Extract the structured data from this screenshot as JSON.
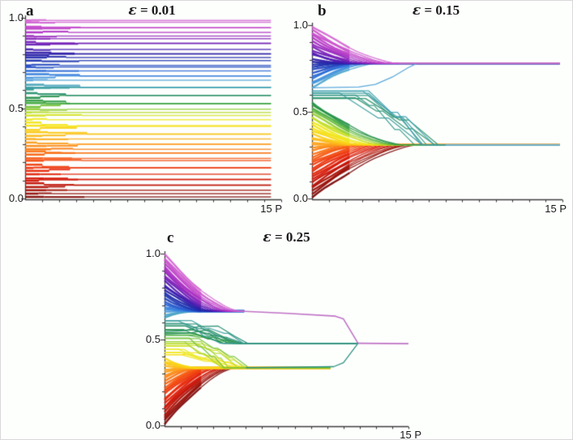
{
  "figure": {
    "background": "#fdfffd",
    "axis_color": "#3c3c3c",
    "text_color": "#1a1a1a"
  },
  "colormap_stops": [
    [
      0.0,
      "#7a0b0b"
    ],
    [
      0.05,
      "#a31108"
    ],
    [
      0.1,
      "#d01508"
    ],
    [
      0.16,
      "#ea2d0d"
    ],
    [
      0.22,
      "#f55211"
    ],
    [
      0.27,
      "#fa7c16"
    ],
    [
      0.32,
      "#fda51d"
    ],
    [
      0.36,
      "#fcc418"
    ],
    [
      0.4,
      "#f7df14"
    ],
    [
      0.44,
      "#eeea20"
    ],
    [
      0.47,
      "#c6df2b"
    ],
    [
      0.5,
      "#84c83a"
    ],
    [
      0.53,
      "#3fa83e"
    ],
    [
      0.56,
      "#218c4e"
    ],
    [
      0.59,
      "#2a9178"
    ],
    [
      0.62,
      "#3c9fae"
    ],
    [
      0.65,
      "#58a8d8"
    ],
    [
      0.68,
      "#3c88e0"
    ],
    [
      0.71,
      "#2a66d4"
    ],
    [
      0.74,
      "#2546be"
    ],
    [
      0.77,
      "#1d2fac"
    ],
    [
      0.8,
      "#2b1ea6"
    ],
    [
      0.83,
      "#4a1cb2"
    ],
    [
      0.86,
      "#6e1eb6"
    ],
    [
      0.89,
      "#9026bc"
    ],
    [
      0.92,
      "#ae30c4"
    ],
    [
      0.95,
      "#c449ca"
    ],
    [
      1.0,
      "#d76cd4"
    ]
  ],
  "chart_data": [
    {
      "type": "line",
      "panel_label": "a",
      "title": "ε = 0.01",
      "title_symbol": "ε",
      "title_value": " = 0.01",
      "epsilon": 0.01,
      "x_range": [
        0,
        15
      ],
      "y_range": [
        0,
        1
      ],
      "x_tick_count": 15,
      "x_axis_label": "15 P",
      "y_tick_labels": [
        "1.0",
        "0.5",
        "0.0"
      ],
      "n_trajectories": 56,
      "initial_opinions": "≈56 opinions spread uniformly over [0,1], rainbow-colored by initial value",
      "behavior": "no consensus: opinions keep their initial values; only tiny merges of nearest neighbours during the first ~3 periods",
      "final_cluster_values": "≈45 distinct opinion values remain, spread uniformly over [0,1]",
      "render": {
        "mode": "frozen",
        "seed": 11,
        "t_end": 14.4,
        "pair_prob": 0.3,
        "triple_prob": 0.08
      }
    },
    {
      "type": "line",
      "panel_label": "b",
      "title": "ε = 0.15",
      "title_symbol": "ε",
      "title_value": " = 0.15",
      "epsilon": 0.15,
      "x_range": [
        0,
        15
      ],
      "y_range": [
        0,
        1
      ],
      "x_tick_count": 15,
      "x_axis_label": "15 P",
      "y_tick_labels": [
        "1.0",
        "0.5",
        "0.0"
      ],
      "n_trajectories": 60,
      "initial_opinions": "≈60 opinions spread uniformly over [0,1], rainbow-colored by initial value",
      "behavior": "polarization into two opinion clusters",
      "final_clusters": [
        {
          "value": 0.78,
          "reached_by_P": 5.2,
          "line_color": "#bf72c5"
        },
        {
          "value": 0.31,
          "reached_by_P": 8.0,
          "line_color": "#7fb6dc"
        }
      ],
      "render": {
        "mode": "funnel",
        "seed": 7,
        "t_end": 14.85,
        "wobble": 0.005,
        "step_dup": 2,
        "smooth_bands": [
          {
            "range": [
              0.622,
              1.001
            ],
            "target": 0.78,
            "t_base": 1.6,
            "t_span": 3.6,
            "max_dist": 0.22,
            "pow": 1.5
          },
          {
            "range": [
              -0.001,
              0.555
            ],
            "target": 0.31,
            "t_base": 1.8,
            "t_span": 4.6,
            "max_dist": 0.31,
            "pow": 1.5
          }
        ],
        "step_bands": [
          {
            "range": [
              0.555,
              0.622
            ],
            "target": 0.31,
            "t_hold": [
              1.6,
              3.4
            ],
            "t_finish": [
              5.6,
              8.2
            ]
          }
        ],
        "risers": [
          {
            "points": [
              [
                0,
                0.638
              ],
              [
                2.8,
                0.643
              ],
              [
                3.8,
                0.658
              ],
              [
                4.8,
                0.7
              ],
              [
                5.8,
                0.757
              ],
              [
                6.3,
                0.78
              ]
            ],
            "color_value": 0.655
          }
        ],
        "overlays": [
          {
            "points": [
              [
                5.2,
                0.78
              ],
              [
                14.85,
                0.78
              ]
            ],
            "color": "#bf72c5",
            "width": 1.8
          },
          {
            "points": [
              [
                8.0,
                0.31
              ],
              [
                14.85,
                0.31
              ]
            ],
            "color": "#7fb6dc",
            "width": 1.8
          }
        ]
      }
    },
    {
      "type": "line",
      "panel_label": "c",
      "title": "ε = 0.25",
      "title_symbol": "ε",
      "title_value": " = 0.25",
      "epsilon": 0.25,
      "x_range": [
        0,
        15
      ],
      "y_range": [
        0,
        1
      ],
      "x_tick_count": 15,
      "x_axis_label": "15 P",
      "y_tick_labels": [
        "1.0",
        "0.5",
        "0.0"
      ],
      "n_trajectories": 60,
      "initial_opinions": "≈60 opinions spread uniformly over [0,1], rainbow-colored by initial value",
      "behavior": "three temporary clusters (≈0.665, ≈0.478, ≈0.335) that merge into full consensus late",
      "intermediate_clusters": [
        {
          "value": 0.665,
          "from_P": 4.7,
          "merges_at_P": 11.9
        },
        {
          "value": 0.478,
          "from_P": 5.0,
          "merges_at_P": 11.9
        },
        {
          "value": 0.335,
          "from_P": 4.6,
          "merges_at_P": 11.9
        }
      ],
      "final_clusters": [
        {
          "value": 0.475,
          "reached_by_P": 11.9,
          "line_color": "#bf72c5"
        }
      ],
      "render": {
        "mode": "funnel",
        "seed": 23,
        "t_end": 15,
        "wobble": 0.005,
        "step_dup": 2,
        "smooth_bands": [
          {
            "range": [
              0.615,
              1.001
            ],
            "target": 0.665,
            "t_base": 1.5,
            "t_span": 3.2,
            "max_dist": 0.335,
            "pow": 1.5,
            "tail_end": 4.9
          },
          {
            "range": [
              -0.001,
              0.4
            ],
            "target": 0.335,
            "t_base": 1.5,
            "t_span": 2.9,
            "max_dist": 0.335,
            "pow": 1.5,
            "tail_end": 10.2
          }
        ],
        "step_bands": [
          {
            "range": [
              0.4,
              0.52
            ],
            "target": 0.335,
            "t_hold": [
              0.8,
              2.4
            ],
            "t_finish": [
              3.8,
              5.6
            ],
            "tail_end": 10.2
          },
          {
            "range": [
              0.52,
              0.615
            ],
            "target": 0.478,
            "t_hold": [
              0.8,
              2.2
            ],
            "t_finish": [
              3.6,
              5.2
            ],
            "tail_end": 11.8
          }
        ],
        "risers": [
          {
            "points": [
              [
                0,
                0.545
              ],
              [
                1.3,
                0.551
              ],
              [
                2.1,
                0.576
              ],
              [
                3.3,
                0.578
              ],
              [
                4.3,
                0.52
              ],
              [
                5.1,
                0.478
              ]
            ],
            "color_value": 0.585
          },
          {
            "points": [
              [
                0,
                0.532
              ],
              [
                1.6,
                0.538
              ],
              [
                2.7,
                0.558
              ],
              [
                3.9,
                0.502
              ],
              [
                4.7,
                0.478
              ]
            ],
            "color_value": 0.572
          }
        ],
        "overlays": [
          {
            "points": [
              [
                4.7,
                0.665
              ],
              [
                7.6,
                0.652
              ],
              [
                10.5,
                0.636
              ],
              [
                11.0,
                0.62
              ],
              [
                11.9,
                0.478
              ]
            ],
            "color": "#bf72c5",
            "width": 1.6
          },
          {
            "points": [
              [
                5.0,
                0.478
              ],
              [
                11.9,
                0.478
              ]
            ],
            "color": "#2f9080",
            "width": 1.3
          },
          {
            "points": [
              [
                5.0,
                0.336
              ],
              [
                10.4,
                0.342
              ],
              [
                11.0,
                0.365
              ],
              [
                11.9,
                0.478
              ]
            ],
            "color": "#2f9080",
            "width": 1.3
          },
          {
            "points": [
              [
                11.9,
                0.478
              ],
              [
                15,
                0.476
              ]
            ],
            "color": "#bf72c5",
            "width": 1.8
          }
        ]
      }
    }
  ]
}
